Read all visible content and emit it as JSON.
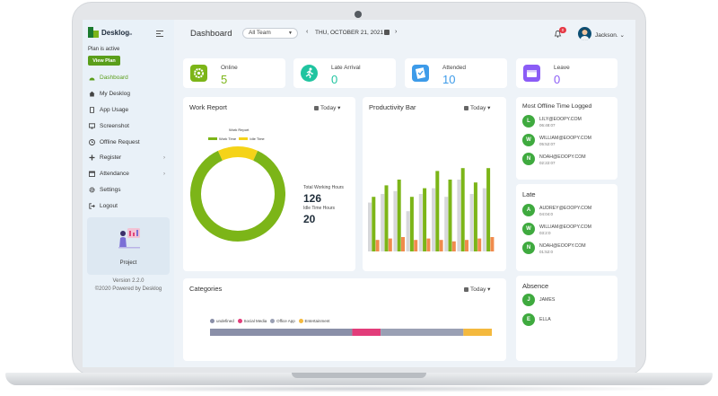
{
  "brand": {
    "name": "Desklog",
    "suffix": "io"
  },
  "sidebar": {
    "plan_status": "Plan is active",
    "view_plan_label": "View Plan",
    "items": [
      {
        "label": "Dashboard",
        "icon": "gauge-icon",
        "active": true
      },
      {
        "label": "My Desklog",
        "icon": "home-icon"
      },
      {
        "label": "App Usage",
        "icon": "mobile-icon"
      },
      {
        "label": "Screenshot",
        "icon": "monitor-icon"
      },
      {
        "label": "Offline Request",
        "icon": "clock-icon"
      },
      {
        "label": "Register",
        "icon": "plus-icon",
        "has_submenu": true
      },
      {
        "label": "Attendance",
        "icon": "calendar-icon",
        "has_submenu": true
      },
      {
        "label": "Settings",
        "icon": "gear-icon"
      },
      {
        "label": "Logout",
        "icon": "logout-icon"
      }
    ],
    "project_label": "Project",
    "version": "Version 2.2.0",
    "powered_by": "©2020 Powered by Desklog"
  },
  "header": {
    "title": "Dashboard",
    "team_select": "All Team",
    "date": "THU, OCTOBER 21, 2021",
    "notification_count": "0",
    "user_name": "Jackson."
  },
  "stats": [
    {
      "label": "Online",
      "value": "5",
      "color": "#7cb518",
      "icon": "gear-activity-icon"
    },
    {
      "label": "Late Arrival",
      "value": "0",
      "color": "#20c4a0",
      "icon": "running-icon"
    },
    {
      "label": "Attended",
      "value": "10",
      "color": "#3d9be9",
      "icon": "checklist-icon"
    },
    {
      "label": "Leave",
      "value": "0",
      "color": "#8b5cf6",
      "icon": "leave-icon"
    }
  ],
  "work_report": {
    "title": "Work Report",
    "period": "Today",
    "chart_title": "Work Report",
    "legend": [
      "Work Time",
      "Idle Time"
    ],
    "total_working_label": "Total Working Hours",
    "total_working_value": "126",
    "idle_label": "Idle Time Hours",
    "idle_value": "20"
  },
  "productivity": {
    "title": "Productivity Bar",
    "period": "Today"
  },
  "categories": {
    "title": "Categories",
    "period": "Today",
    "legend": [
      {
        "label": "undefined",
        "color": "#8a8fa8"
      },
      {
        "label": "Social Media",
        "color": "#e23d7a"
      },
      {
        "label": "Office App",
        "color": "#9aa0b4"
      },
      {
        "label": "Entertainment",
        "color": "#f4b93e"
      }
    ]
  },
  "offline": {
    "title": "Most Offline Time Logged",
    "people": [
      {
        "initial": "L",
        "email": "LILY@EOOPY.COM",
        "time": "06:48:07"
      },
      {
        "initial": "W",
        "email": "WILLIAM@EOOPY.COM",
        "time": "05:52:07"
      },
      {
        "initial": "N",
        "email": "NOAH@EOOPY.COM",
        "time": "02:22:07"
      }
    ]
  },
  "late": {
    "title": "Late",
    "people": [
      {
        "initial": "A",
        "email": "AUDREY@EOOPY.COM",
        "time": "04:04:0"
      },
      {
        "initial": "W",
        "email": "WILLIAM@EOOPY.COM",
        "time": "03:2:0"
      },
      {
        "initial": "N",
        "email": "NOAH@EOOPY.COM",
        "time": "01:52:0"
      }
    ]
  },
  "absence": {
    "title": "Absence",
    "people": [
      {
        "initial": "J",
        "name": "JAMES"
      },
      {
        "initial": "E",
        "name": "ELLA"
      }
    ]
  },
  "chart_data": [
    {
      "type": "pie",
      "title": "Work Report",
      "labels": [
        "Work Time",
        "Idle Time"
      ],
      "values": [
        126,
        20
      ],
      "colors": [
        "#7cb518",
        "#f5d318"
      ]
    },
    {
      "type": "bar",
      "title": "Productivity Bar",
      "categories": [
        "1",
        "2",
        "3",
        "4",
        "5",
        "6",
        "7",
        "8",
        "9",
        "10"
      ],
      "series": [
        {
          "values": [
            34,
            40,
            42,
            28,
            40,
            44,
            38,
            50,
            40,
            44
          ],
          "color": "#d7d8db"
        },
        {
          "values": [
            38,
            46,
            50,
            38,
            44,
            56,
            50,
            58,
            48,
            58
          ],
          "color": "#7cb518"
        },
        {
          "values": [
            8,
            9,
            10,
            8,
            9,
            8,
            7,
            8,
            9,
            10
          ],
          "color": "#f08b4d"
        }
      ],
      "ylim": [
        0,
        60
      ]
    },
    {
      "type": "bar",
      "title": "Categories",
      "stacked": true,
      "categories": [
        "Today"
      ],
      "series": [
        {
          "name": "undefined",
          "values": [
            55
          ]
        },
        {
          "name": "Social Media",
          "values": [
            11
          ]
        },
        {
          "name": "Office App",
          "values": [
            32
          ]
        },
        {
          "name": "Entertainment",
          "values": [
            11
          ]
        }
      ],
      "ylim": [
        0,
        109
      ]
    }
  ]
}
